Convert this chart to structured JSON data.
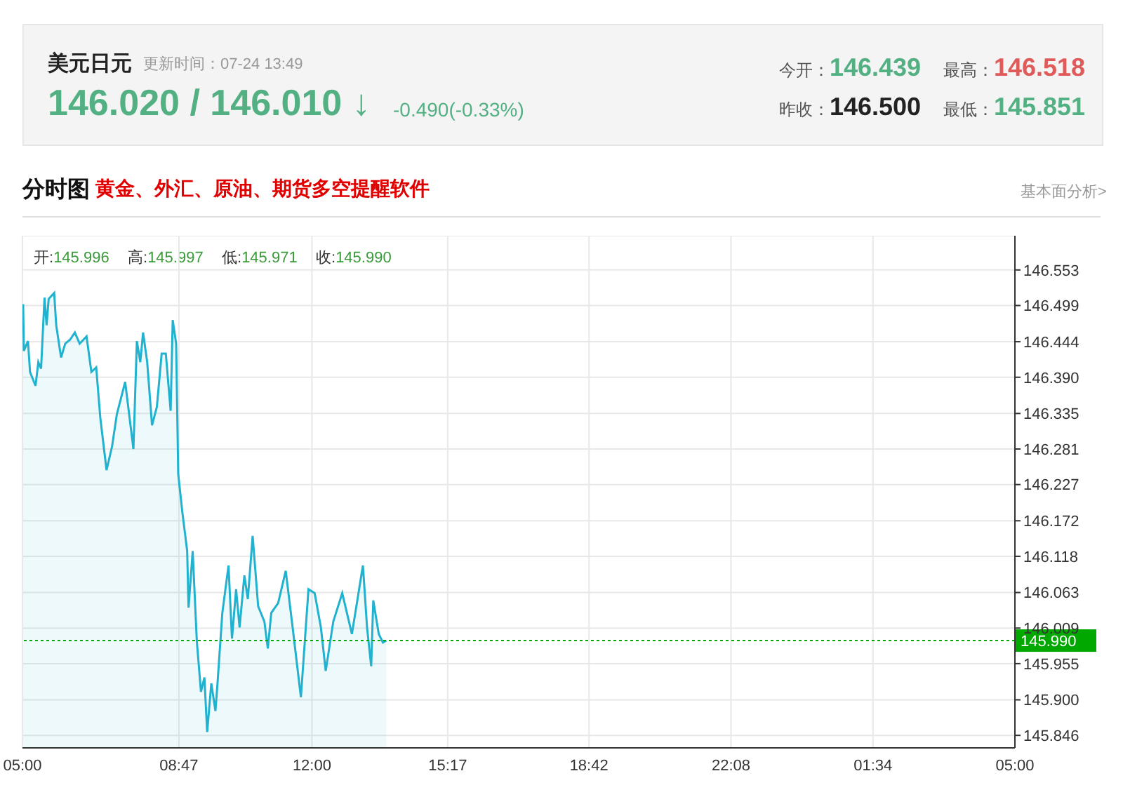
{
  "chart_data": {
    "type": "area",
    "title": "美元日元",
    "annotations": [
      "更新时间：07-24 13:49",
      "146.020 / 146.010 ↓",
      "-0.490(-0.33%)",
      "今开：146.439",
      "最高：146.518",
      "昨收：146.500",
      "最低：145.851",
      "分时图",
      "黄金、外汇、原油、期货多空提醒软件",
      "基本面分析>",
      "开:145.996",
      "高:145.997",
      "低:145.971",
      "收:145.990"
    ],
    "x": [
      "--07-24T05:01",
      "--07-24T05:02",
      "--07-24T05:08",
      "--07-24T05:11",
      "--07-24T05:19",
      "--07-24T05:23",
      "--07-24T05:27",
      "--07-24T05:32",
      "--07-24T05:35",
      "--07-24T05:38",
      "--07-24T05:46",
      "--07-24T05:49",
      "--07-24T05:56",
      "--07-24T06:02",
      "--07-24T06:09",
      "--07-24T06:16",
      "--07-24T06:23",
      "--07-24T06:33",
      "--07-24T06:40",
      "--07-24T06:47",
      "--07-24T06:53",
      "--07-24T07:02",
      "--07-24T07:10",
      "--07-24T07:17",
      "--07-24T07:29",
      "--07-24T07:41",
      "--07-24T07:46",
      "--07-24T07:51",
      "--07-24T07:55",
      "--07-24T08:01",
      "--07-24T08:08",
      "--07-24T08:15",
      "--07-24T08:22",
      "--07-24T08:28",
      "--07-24T08:35",
      "--07-24T08:38",
      "--07-24T08:43",
      "--07-24T08:46",
      "--07-24T08:52",
      "--07-24T08:59",
      "--07-24T09:01",
      "--07-24T09:07",
      "--07-24T09:13",
      "--07-24T09:19",
      "--07-24T09:24",
      "--07-24T09:28",
      "--07-24T09:34",
      "--07-24T09:40",
      "--07-24T09:43",
      "--07-24T09:50",
      "--07-24T09:59",
      "--07-24T10:04",
      "--07-24T10:10",
      "--07-24T10:15",
      "--07-24T10:22",
      "--07-24T10:27",
      "--07-24T10:34",
      "--07-24T10:42",
      "--07-24T10:51",
      "--07-24T10:56",
      "--07-24T11:01",
      "--07-24T11:11",
      "--07-24T11:22",
      "--07-24T11:32",
      "--07-24T11:44",
      "--07-24T11:55",
      "--07-24T12:04",
      "--07-24T12:13",
      "--07-24T12:20",
      "--07-24T12:31",
      "--07-24T12:44",
      "--07-24T12:58",
      "--07-24T13:14",
      "--07-24T13:20",
      "--07-24T13:26",
      "--07-24T13:29",
      "--07-24T13:37",
      "--07-24T13:43",
      "--07-24T13:48"
    ],
    "series": [
      {
        "color": "#21b2cf",
        "values": [
          146.501,
          146.43,
          146.445,
          146.398,
          146.377,
          146.413,
          146.403,
          146.511,
          146.469,
          146.509,
          146.518,
          146.469,
          146.42,
          146.441,
          146.447,
          146.458,
          146.441,
          146.452,
          146.398,
          146.405,
          146.328,
          146.249,
          146.285,
          146.334,
          146.383,
          146.281,
          146.445,
          146.413,
          146.458,
          146.413,
          146.317,
          146.345,
          146.426,
          146.426,
          146.339,
          146.477,
          146.441,
          146.243,
          146.185,
          146.126,
          146.04,
          146.126,
          145.989,
          145.912,
          145.934,
          145.851,
          145.925,
          145.883,
          145.925,
          146.032,
          146.104,
          145.993,
          146.068,
          146.01,
          146.089,
          146.053,
          146.149,
          146.042,
          146.019,
          145.978,
          146.032,
          146.047,
          146.096,
          146.01,
          145.904,
          146.068,
          146.062,
          146.01,
          145.944,
          146.019,
          146.062,
          146.0,
          146.104,
          146.01,
          145.951,
          146.051,
          146.0,
          145.987,
          145.99
        ]
      }
    ],
    "xlim": [
      "--07-24T05:00",
      "--07-25T05:00"
    ],
    "xticks": [
      {
        "value": "--07-24T05:00",
        "label": "05:00"
      },
      {
        "value": "--07-24T08:47",
        "label": "08:47"
      },
      {
        "value": "--07-24T12:00",
        "label": "12:00"
      },
      {
        "value": "--07-24T15:17",
        "label": "15:17"
      },
      {
        "value": "--07-24T18:42",
        "label": "18:42"
      },
      {
        "value": "--07-24T22:08",
        "label": "22:08"
      },
      {
        "value": "--07-25T01:34",
        "label": "01:34"
      },
      {
        "value": "--07-25T05:00",
        "label": "05:00"
      }
    ],
    "ylim": [
      145.827,
      146.605
    ],
    "yticks": [
      146.553,
      146.499,
      146.444,
      {
        "value": 146.39,
        "label": "146.390"
      },
      146.335,
      146.281,
      146.227,
      146.172,
      146.118,
      146.063,
      146.009,
      145.955,
      {
        "value": 145.9,
        "label": "145.900"
      },
      145.846
    ],
    "ref_lines": [
      {
        "axis": "y",
        "value": 145.99,
        "label": "145.990",
        "color": "#00a800",
        "line_style": "dotted"
      }
    ],
    "grid": true
  }
}
